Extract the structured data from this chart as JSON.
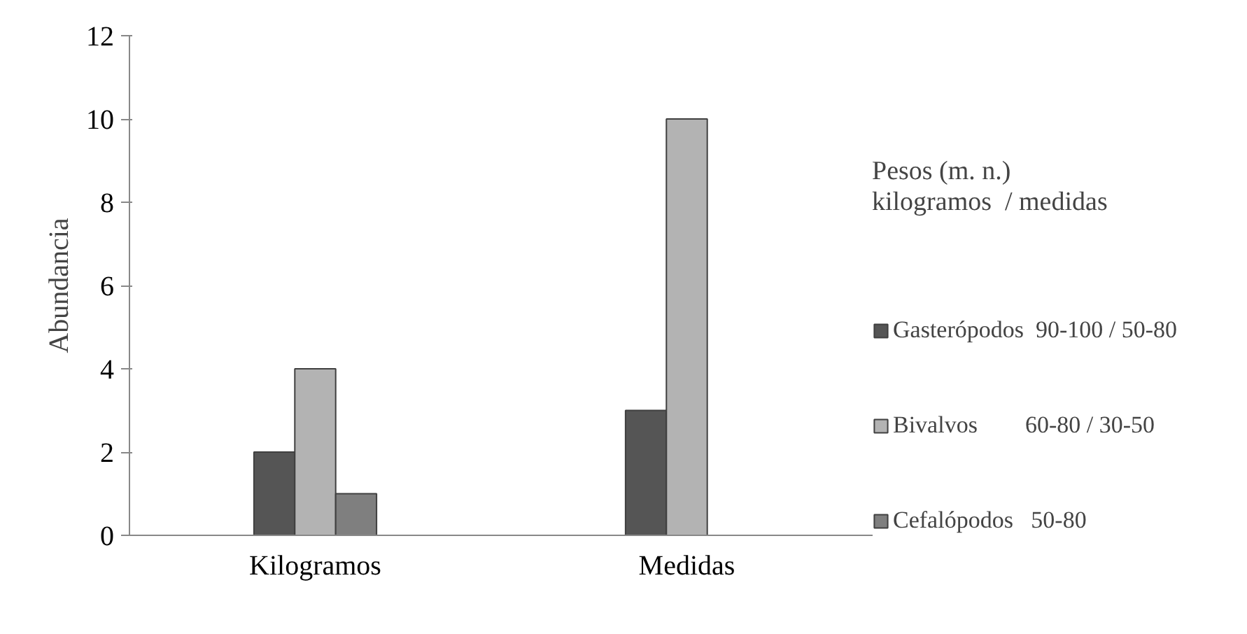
{
  "chart_data": {
    "type": "bar",
    "ylabel": "Abundancia",
    "legend_title": "Pesos (m. n.)\nkilogramos  / medidas",
    "categories": [
      "Kilogramos",
      "Medidas"
    ],
    "series": [
      {
        "name": "Gasterópodos  90-100 / 50-80",
        "color": "#555555",
        "values": [
          2,
          3
        ]
      },
      {
        "name": "Bivalvos        60-80 / 30-50",
        "color": "#b3b3b3",
        "values": [
          4,
          10
        ]
      },
      {
        "name": "Cefalópodos   50-80",
        "color": "#7f7f7f",
        "values": [
          1,
          null
        ]
      }
    ],
    "ylim": [
      0,
      12
    ],
    "yticks": [
      0,
      2,
      4,
      6,
      8,
      10,
      12
    ],
    "grid": false,
    "legend": "right"
  }
}
